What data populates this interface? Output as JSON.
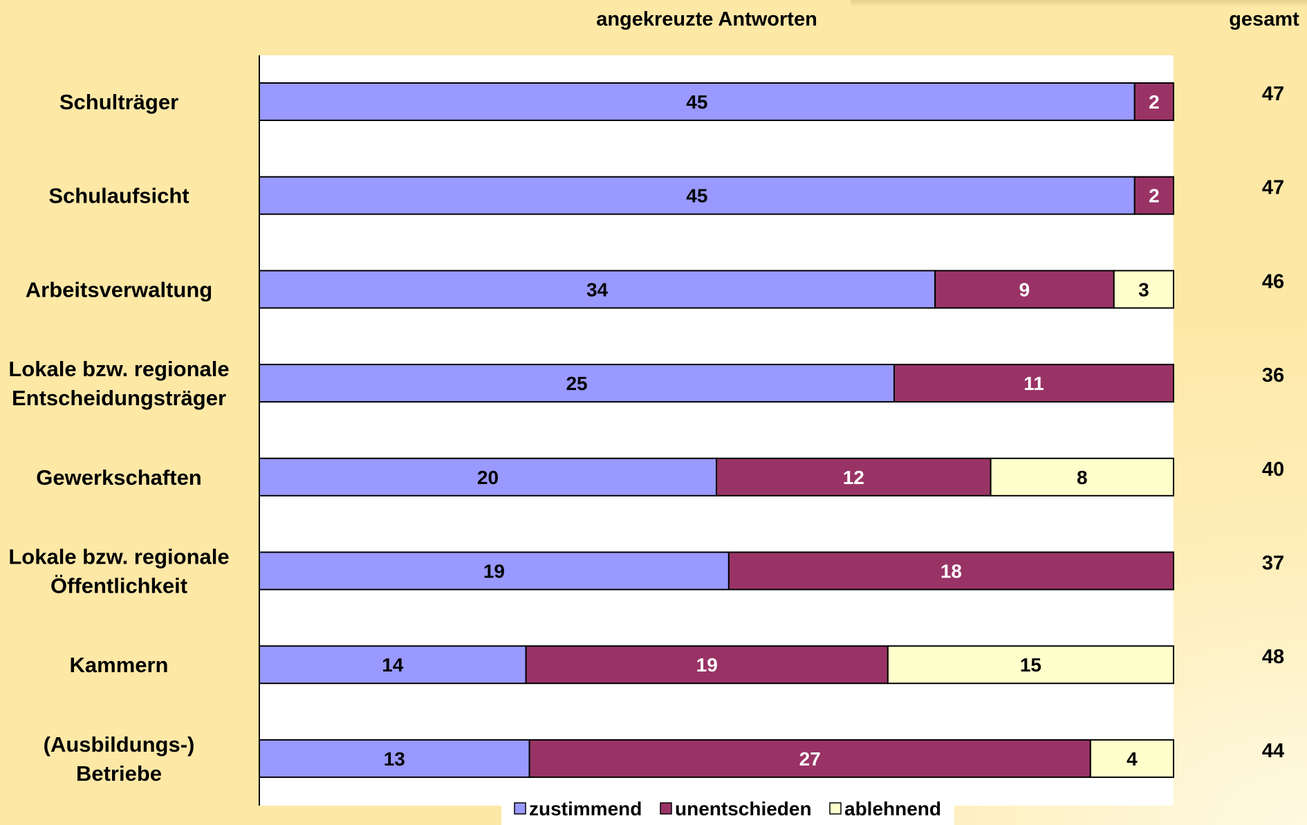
{
  "chart_data": {
    "type": "bar",
    "orientation": "horizontal",
    "stacked": true,
    "title": "angekreuzte Antworten",
    "total_column_header": "gesamt",
    "categories": [
      "Schulträger",
      "Schulaufsicht",
      "Arbeitsverwaltung",
      "Lokale bzw. regionale\nEntscheidungsträger",
      "Gewerkschaften",
      "Lokale bzw. regionale\nÖffentlichkeit",
      "Kammern",
      "(Ausbildungs-)\nBetriebe"
    ],
    "series": [
      {
        "name": "zustimmend",
        "color": "#9999ff",
        "label_color": "#000000",
        "values": [
          45,
          45,
          34,
          25,
          20,
          19,
          14,
          13
        ]
      },
      {
        "name": "unentschieden",
        "color": "#993366",
        "label_color": "#ffffff",
        "values": [
          2,
          2,
          9,
          11,
          12,
          18,
          19,
          27
        ]
      },
      {
        "name": "ablehnend",
        "color": "#ffffcc",
        "label_color": "#000000",
        "values": [
          0,
          0,
          3,
          0,
          8,
          0,
          15,
          4
        ]
      }
    ],
    "totals": [
      47,
      47,
      46,
      36,
      40,
      37,
      48,
      44
    ],
    "xlim": [
      0,
      100
    ],
    "xunit": "percent of row total",
    "legend_position": "bottom",
    "grid": false,
    "colors": {
      "background": "#fde8a6",
      "plot_area": "#ffffff",
      "bar_outline": "#000000"
    }
  }
}
